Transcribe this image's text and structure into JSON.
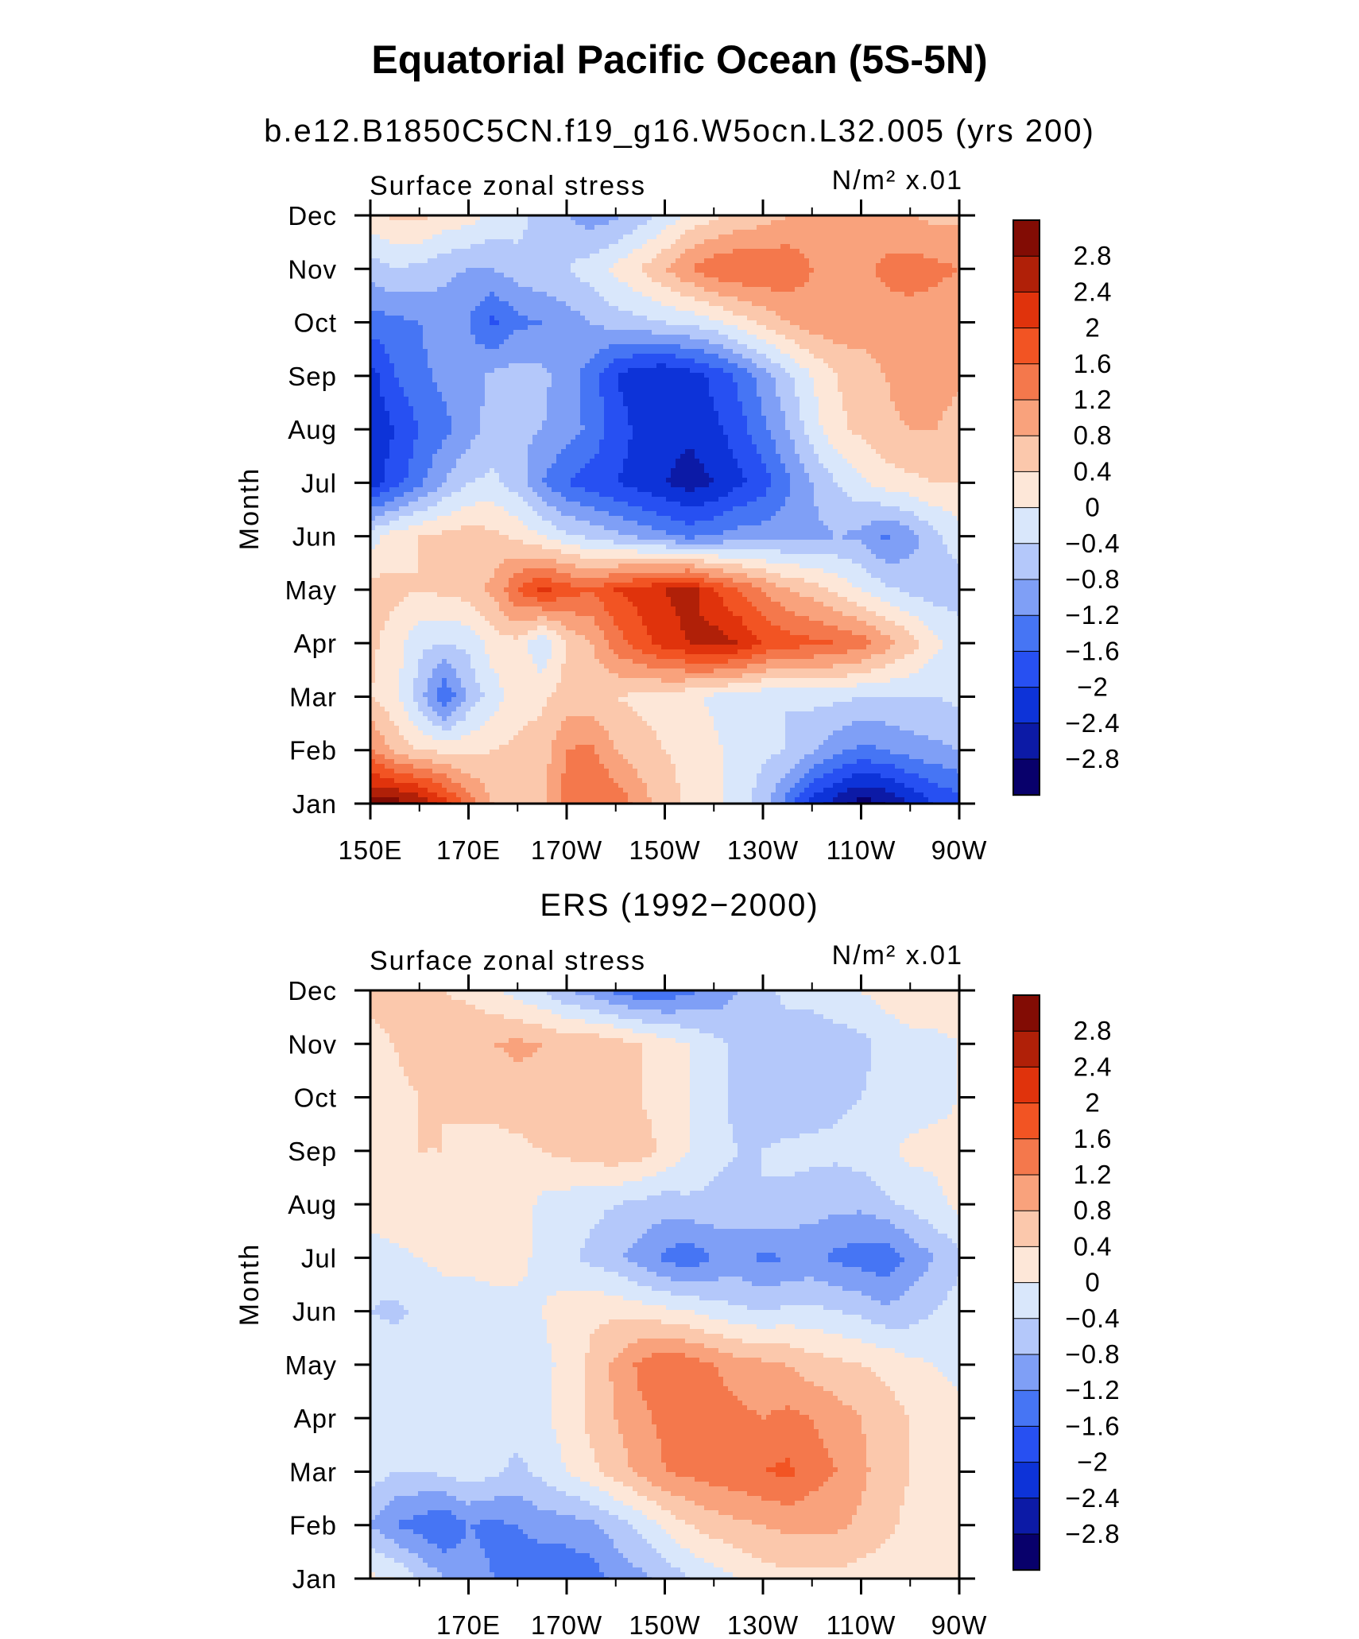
{
  "title": "Equatorial Pacific Ocean (5S-5N)",
  "chart_data": [
    {
      "type": "heatmap",
      "subtitle": "b.e12.B1850C5CN.f19_g16.W5ocn.L32.005 (yrs 200)",
      "left_label": "Surface zonal stress",
      "units_label": "N/m² x.01",
      "ylabel": "Month",
      "x_ticks": [
        "150E",
        "170E",
        "170W",
        "150W",
        "130W",
        "110W",
        "90W"
      ],
      "x_range": [
        150,
        270
      ],
      "y_ticks": [
        "Jan",
        "Feb",
        "Mar",
        "Apr",
        "May",
        "Jun",
        "Jul",
        "Aug",
        "Sep",
        "Oct",
        "Nov",
        "Dec"
      ],
      "x": [
        150,
        155,
        160,
        165,
        170,
        175,
        180,
        185,
        190,
        195,
        200,
        205,
        210,
        215,
        220,
        225,
        230,
        235,
        240,
        245,
        250,
        255,
        260,
        265,
        270
      ],
      "z": [
        [
          3.0,
          3.0,
          2.8,
          2.2,
          1.4,
          0.8,
          0.5,
          0.7,
          1.4,
          1.6,
          1.5,
          1.0,
          0.6,
          0.3,
          0.1,
          -0.2,
          -0.6,
          -1.4,
          -2.2,
          -2.6,
          -3.0,
          -2.8,
          -2.4,
          -2.0,
          -1.8
        ],
        [
          1.3,
          0.7,
          0.4,
          0.3,
          0.3,
          0.4,
          0.5,
          0.6,
          1.2,
          1.3,
          0.8,
          0.6,
          0.4,
          0.3,
          0.1,
          -0.2,
          -0.3,
          -0.4,
          -0.7,
          -1.1,
          -1.3,
          -1.2,
          -1.0,
          -0.9,
          -0.8
        ],
        [
          0.4,
          0.1,
          -0.6,
          -1.6,
          -0.7,
          -0.2,
          0.2,
          0.3,
          0.6,
          0.5,
          0.4,
          0.3,
          0.2,
          0.1,
          -0.1,
          -0.2,
          -0.3,
          -0.4,
          -0.3,
          -0.3,
          -0.4,
          -0.4,
          -0.4,
          -0.4,
          -0.3
        ],
        [
          0.5,
          0.2,
          -0.3,
          -0.4,
          -0.3,
          0.2,
          0.3,
          -0.4,
          0.4,
          0.8,
          1.4,
          1.8,
          2.2,
          2.4,
          2.6,
          2.4,
          2.0,
          1.8,
          1.7,
          1.6,
          1.4,
          1.0,
          0.6,
          0.1,
          -0.2
        ],
        [
          0.6,
          0.5,
          0.4,
          0.5,
          0.6,
          0.9,
          1.6,
          2.1,
          1.8,
          1.6,
          2.0,
          2.2,
          2.4,
          2.6,
          2.0,
          1.6,
          1.2,
          0.8,
          0.6,
          0.3,
          0.0,
          -0.3,
          -0.5,
          -0.6,
          -0.6
        ],
        [
          -0.2,
          0.2,
          0.4,
          0.5,
          0.6,
          0.5,
          0.3,
          0.0,
          -0.3,
          -0.5,
          -0.7,
          -0.9,
          -1.1,
          -1.3,
          -1.2,
          -1.0,
          -1.0,
          -0.9,
          -0.9,
          -0.8,
          -0.9,
          -1.3,
          -1.0,
          -0.5,
          -0.2
        ],
        [
          -2.2,
          -1.8,
          -1.3,
          -0.8,
          -0.4,
          -0.3,
          -0.6,
          -1.2,
          -1.6,
          -1.8,
          -2.0,
          -2.2,
          -2.4,
          -2.6,
          -2.4,
          -2.1,
          -1.8,
          -1.3,
          -0.8,
          -0.4,
          -0.1,
          0.2,
          0.3,
          0.4,
          0.4
        ],
        [
          -2.3,
          -2.0,
          -1.6,
          -1.3,
          -1.0,
          -0.6,
          -0.7,
          -0.8,
          -1.0,
          -1.3,
          -1.8,
          -2.1,
          -2.2,
          -2.3,
          -2.1,
          -1.8,
          -1.3,
          -0.8,
          -0.2,
          0.3,
          0.5,
          0.7,
          0.8,
          0.8,
          0.6
        ],
        [
          -2.2,
          -1.6,
          -1.3,
          -1.1,
          -1.0,
          -0.7,
          -0.6,
          -0.7,
          -1.0,
          -1.4,
          -2.0,
          -2.3,
          -2.4,
          -2.2,
          -1.9,
          -1.5,
          -1.0,
          -0.5,
          0.0,
          0.4,
          0.6,
          0.8,
          1.0,
          1.0,
          0.9
        ],
        [
          -1.4,
          -1.3,
          -1.2,
          -1.0,
          -1.2,
          -1.7,
          -1.3,
          -1.2,
          -1.0,
          -0.8,
          -0.6,
          -0.5,
          -0.4,
          -0.3,
          -0.1,
          0.2,
          0.5,
          0.8,
          1.0,
          1.1,
          1.0,
          1.0,
          1.0,
          1.0,
          0.9
        ],
        [
          -0.6,
          -0.4,
          -0.5,
          -0.7,
          -0.8,
          -0.8,
          -0.6,
          -0.5,
          -0.4,
          -0.2,
          0.1,
          0.4,
          0.8,
          1.2,
          1.5,
          1.6,
          1.6,
          1.5,
          1.2,
          1.0,
          1.1,
          1.3,
          1.4,
          1.3,
          1.2
        ],
        [
          0.3,
          0.5,
          0.5,
          0.3,
          0.2,
          -0.1,
          -0.2,
          -0.6,
          -0.8,
          -1.0,
          -0.9,
          -0.6,
          -0.3,
          0.1,
          0.3,
          0.5,
          0.6,
          0.8,
          0.9,
          1.0,
          1.0,
          0.9,
          0.8,
          0.7,
          0.7
        ]
      ],
      "levels": [
        -2.8,
        -2.4,
        -2.0,
        -1.6,
        -1.2,
        -0.8,
        -0.4,
        0,
        0.4,
        0.8,
        1.2,
        1.6,
        2.0,
        2.4,
        2.8
      ],
      "colorbar_labels": [
        "2.8",
        "2.4",
        "2",
        "1.6",
        "1.2",
        "0.8",
        "0.4",
        "0",
        "−0.4",
        "−0.8",
        "−1.2",
        "−1.6",
        "−2",
        "−2.4",
        "−2.8"
      ],
      "colors": [
        "#08006b",
        "#0c1aa6",
        "#0d33d8",
        "#2750f2",
        "#4675f4",
        "#7f9ff6",
        "#b4c8fa",
        "#d9e7fb",
        "#fde7d8",
        "#fbc8ac",
        "#f9a27c",
        "#f4784c",
        "#f25423",
        "#e0330c",
        "#b02008",
        "#820c04"
      ]
    },
    {
      "type": "heatmap",
      "subtitle": "ERS (1992−2000)",
      "left_label": "Surface zonal stress",
      "units_label": "N/m² x.01",
      "ylabel": "Month",
      "x_ticks": [
        "170E",
        "170W",
        "150W",
        "130W",
        "110W",
        "90W"
      ],
      "x_range": [
        150,
        270
      ],
      "y_ticks": [
        "Jan",
        "Feb",
        "Mar",
        "Apr",
        "May",
        "Jun",
        "Jul",
        "Aug",
        "Sep",
        "Oct",
        "Nov",
        "Dec"
      ],
      "x": [
        150,
        155,
        160,
        165,
        170,
        175,
        180,
        185,
        190,
        195,
        200,
        205,
        210,
        215,
        220,
        225,
        230,
        235,
        240,
        245,
        250,
        255,
        260,
        265,
        270
      ],
      "z": [
        [
          0.1,
          0.0,
          -0.4,
          -0.8,
          -1.0,
          -1.2,
          -1.5,
          -1.6,
          -1.5,
          -1.4,
          -1.1,
          -0.9,
          -0.7,
          -0.4,
          -0.2,
          0.0,
          0.2,
          0.3,
          0.3,
          0.3,
          0.2,
          0.2,
          0.1,
          0.1,
          0.1
        ],
        [
          -0.8,
          -1.2,
          -1.4,
          -1.6,
          -1.2,
          -1.3,
          -1.2,
          -1.0,
          -1.0,
          -0.9,
          -0.6,
          -0.3,
          0.1,
          0.4,
          0.6,
          0.7,
          0.8,
          0.9,
          0.9,
          0.9,
          0.7,
          0.5,
          0.3,
          0.2,
          0.1
        ],
        [
          -0.2,
          -0.4,
          -0.4,
          -0.3,
          -0.2,
          -0.3,
          -0.5,
          -0.3,
          0.0,
          0.3,
          0.6,
          0.9,
          1.2,
          1.3,
          1.4,
          1.5,
          1.6,
          1.7,
          1.4,
          1.2,
          0.9,
          0.6,
          0.4,
          0.2,
          0.1
        ],
        [
          -0.2,
          -0.1,
          -0.2,
          -0.2,
          -0.3,
          -0.4,
          -0.2,
          -0.1,
          0.2,
          0.5,
          0.8,
          1.1,
          1.3,
          1.5,
          1.4,
          1.3,
          1.2,
          1.3,
          1.2,
          1.0,
          0.8,
          0.6,
          0.4,
          0.2,
          0.1
        ],
        [
          -0.1,
          -0.1,
          -0.2,
          -0.3,
          -0.4,
          -0.3,
          -0.2,
          -0.1,
          0.1,
          0.5,
          0.9,
          1.3,
          1.6,
          1.4,
          1.2,
          1.0,
          0.9,
          0.8,
          0.6,
          0.5,
          0.4,
          0.3,
          0.1,
          0.0,
          -0.1
        ],
        [
          -0.4,
          -0.5,
          -0.3,
          -0.2,
          -0.2,
          -0.2,
          -0.1,
          0.0,
          0.2,
          0.3,
          0.3,
          0.2,
          0.1,
          0.0,
          -0.2,
          -0.3,
          -0.4,
          -0.3,
          -0.3,
          -0.4,
          -0.5,
          -0.7,
          -0.6,
          -0.4,
          -0.2
        ],
        [
          -0.2,
          -0.1,
          0.0,
          0.1,
          0.1,
          0.2,
          0.1,
          -0.1,
          -0.3,
          -0.5,
          -0.7,
          -1.0,
          -1.3,
          -1.5,
          -1.2,
          -1.1,
          -1.3,
          -1.2,
          -1.1,
          -1.3,
          -1.4,
          -1.5,
          -1.1,
          -0.8,
          -0.5
        ],
        [
          0.2,
          0.3,
          0.3,
          0.2,
          0.3,
          0.2,
          0.2,
          -0.1,
          -0.2,
          -0.3,
          -0.4,
          -0.5,
          -0.6,
          -0.5,
          -0.5,
          -0.5,
          -0.4,
          -0.5,
          -0.6,
          -0.7,
          -0.7,
          -0.5,
          -0.3,
          -0.1,
          0.1
        ],
        [
          0.3,
          0.3,
          0.4,
          0.4,
          0.3,
          0.3,
          0.3,
          0.4,
          0.5,
          0.6,
          0.7,
          0.6,
          0.3,
          0.0,
          -0.3,
          -0.4,
          -0.4,
          -0.3,
          -0.3,
          -0.3,
          -0.2,
          -0.1,
          0.1,
          0.1,
          0.1
        ],
        [
          0.4,
          0.3,
          0.4,
          0.4,
          0.5,
          0.5,
          0.6,
          0.7,
          0.6,
          0.6,
          0.5,
          0.4,
          0.2,
          0.0,
          -0.3,
          -0.5,
          -0.6,
          -0.7,
          -0.6,
          -0.5,
          -0.4,
          -0.3,
          -0.2,
          -0.1,
          0.0
        ],
        [
          0.3,
          0.4,
          0.6,
          0.6,
          0.7,
          0.8,
          0.9,
          0.8,
          0.7,
          0.7,
          0.6,
          0.4,
          0.2,
          0.0,
          -0.3,
          -0.5,
          -0.6,
          -0.6,
          -0.7,
          -0.6,
          -0.5,
          -0.3,
          -0.2,
          -0.1,
          0.0
        ],
        [
          0.5,
          0.6,
          0.5,
          0.4,
          0.3,
          0.1,
          -0.2,
          -0.4,
          -0.8,
          -1.0,
          -1.3,
          -1.5,
          -1.5,
          -1.3,
          -1.1,
          -0.8,
          -0.5,
          -0.3,
          -0.2,
          -0.1,
          0.0,
          0.2,
          0.4,
          0.3,
          0.2
        ]
      ],
      "levels": [
        -2.8,
        -2.4,
        -2.0,
        -1.6,
        -1.2,
        -0.8,
        -0.4,
        0,
        0.4,
        0.8,
        1.2,
        1.6,
        2.0,
        2.4,
        2.8
      ],
      "colorbar_labels": [
        "2.8",
        "2.4",
        "2",
        "1.6",
        "1.2",
        "0.8",
        "0.4",
        "0",
        "−0.4",
        "−0.8",
        "−1.2",
        "−1.6",
        "−2",
        "−2.4",
        "−2.8"
      ],
      "colors": [
        "#08006b",
        "#0c1aa6",
        "#0d33d8",
        "#2750f2",
        "#4675f4",
        "#7f9ff6",
        "#b4c8fa",
        "#d9e7fb",
        "#fde7d8",
        "#fbc8ac",
        "#f9a27c",
        "#f4784c",
        "#f25423",
        "#e0330c",
        "#b02008",
        "#820c04"
      ]
    }
  ]
}
